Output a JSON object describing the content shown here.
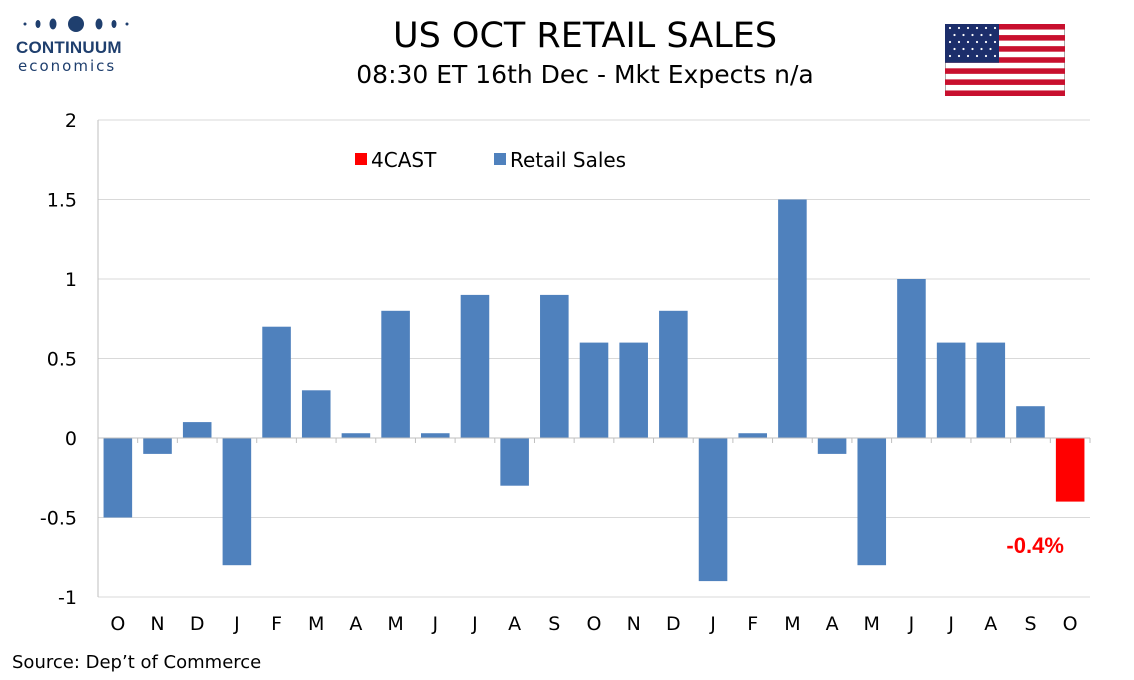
{
  "brand": {
    "name": "CONTINUUM",
    "sub": "economics"
  },
  "title": "US OCT RETAIL SALES",
  "subtitle": "08:30 ET 16th Dec - Mkt Expects n/a",
  "source": "Source: Dep’t of Commerce",
  "flag_icon": "us-flag-icon",
  "colors": {
    "actual": "#4f81bd",
    "forecast": "#ff0000",
    "annotation": "#ff0000",
    "brand": "#1f3f6e"
  },
  "chart_data": {
    "type": "bar",
    "title": "US OCT RETAIL SALES",
    "xlabel": "",
    "ylabel": "",
    "ylim": [
      -1,
      2
    ],
    "yticks": [
      -1,
      -0.5,
      0,
      0.5,
      1,
      1.5,
      2
    ],
    "ytick_labels": [
      "-1",
      "-0.5",
      "0",
      "0.5",
      "1",
      "1.5",
      "2"
    ],
    "grid": true,
    "legend_position": "top-left",
    "categories": [
      "O",
      "N",
      "D",
      "J",
      "F",
      "M",
      "A",
      "M",
      "J",
      "J",
      "A",
      "S",
      "O",
      "N",
      "D",
      "J",
      "F",
      "M",
      "A",
      "M",
      "J",
      "J",
      "A",
      "S",
      "O"
    ],
    "series": [
      {
        "name": "4CAST",
        "color": "#ff0000",
        "values": [
          null,
          null,
          null,
          null,
          null,
          null,
          null,
          null,
          null,
          null,
          null,
          null,
          null,
          null,
          null,
          null,
          null,
          null,
          null,
          null,
          null,
          null,
          null,
          null,
          -0.4
        ]
      },
      {
        "name": "Retail Sales",
        "color": "#4f81bd",
        "values": [
          -0.5,
          -0.1,
          0.1,
          -0.8,
          0.7,
          0.3,
          0.03,
          0.8,
          0.03,
          0.9,
          -0.3,
          0.9,
          0.6,
          0.6,
          0.8,
          -0.9,
          0.03,
          1.5,
          -0.1,
          -0.8,
          1.0,
          0.6,
          0.6,
          0.2,
          null
        ]
      }
    ],
    "annotation": {
      "text": "-0.4%",
      "category_index": 24
    }
  }
}
